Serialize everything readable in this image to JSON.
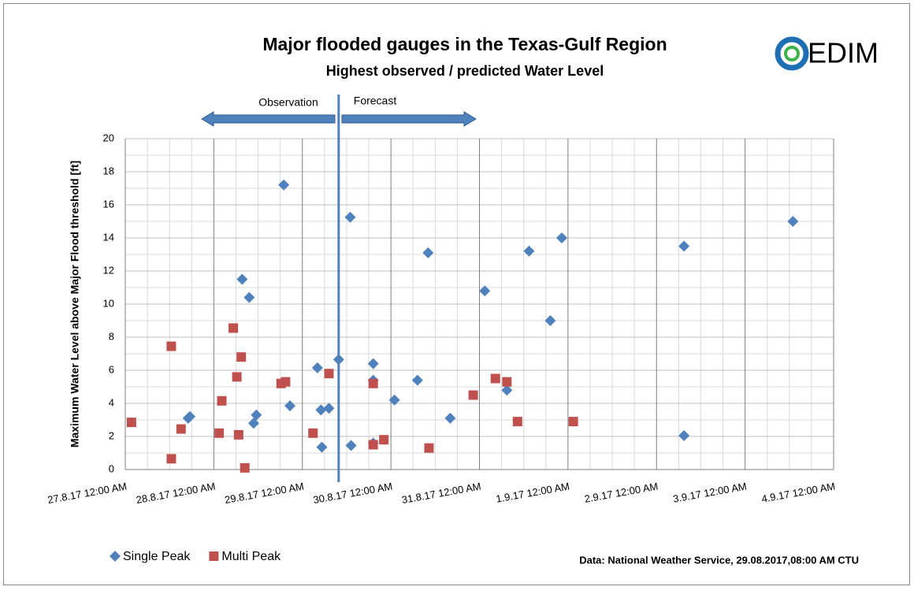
{
  "chart_data": {
    "type": "scatter",
    "title": "Major flooded gauges in the Texas-Gulf Region",
    "subtitle": "Highest observed / predicted Water Level",
    "logo": "EDIM",
    "y_label": "Maximum Water Level above Major Flood threshold [ft]",
    "annotations": {
      "observation": "Observation",
      "forecast": "Forecast"
    },
    "forecast_line_x": 42976.41,
    "source": "Data: National Weather Service, 29.08.2017,08:00 AM CTU",
    "xlim": [
      42974,
      42982
    ],
    "xticks": [
      {
        "value": 42974,
        "label": "27.8.17 12:00 AM"
      },
      {
        "value": 42975,
        "label": "28.8.17 12:00 AM"
      },
      {
        "value": 42976,
        "label": "29.8.17 12:00 AM"
      },
      {
        "value": 42977,
        "label": "30.8.17 12:00 AM"
      },
      {
        "value": 42978,
        "label": "31.8.17 12:00 AM"
      },
      {
        "value": 42979,
        "label": "1.9.17 12:00 AM"
      },
      {
        "value": 42980,
        "label": "2.9.17 12:00 AM"
      },
      {
        "value": 42981,
        "label": "3.9.17 12:00 AM"
      },
      {
        "value": 42982,
        "label": "4.9.17 12:00 AM"
      }
    ],
    "ylim": [
      0,
      20
    ],
    "yticks": [
      0,
      2,
      4,
      6,
      8,
      10,
      12,
      14,
      16,
      18,
      20
    ],
    "grid": true,
    "series": [
      {
        "name": "Single Peak",
        "color": "#4f81bd",
        "marker": "diamond",
        "x": [
          42974.73,
          42974.71,
          42975.32,
          42975.4,
          42975.45,
          42975.48,
          42975.79,
          42975.86,
          42976.17,
          42976.21,
          42976.22,
          42976.3,
          42976.41,
          42976.54,
          42976.55,
          42976.8,
          42976.8,
          42976.8,
          42977.04,
          42977.3,
          42977.42,
          42977.67,
          42978.06,
          42978.31,
          42978.56,
          42978.8,
          42978.93,
          42980.31,
          42980.31,
          42981.54
        ],
        "values": [
          3.2,
          3.1,
          11.5,
          10.4,
          2.8,
          3.3,
          17.2,
          3.85,
          6.15,
          3.6,
          1.35,
          3.7,
          6.65,
          15.25,
          1.45,
          6.4,
          5.4,
          1.6,
          4.2,
          5.4,
          13.1,
          3.1,
          10.8,
          4.8,
          13.2,
          9.0,
          14.0,
          13.5,
          2.05,
          15.0
        ]
      },
      {
        "name": "Multi Peak",
        "color": "#c0504d",
        "marker": "square",
        "x": [
          42974.07,
          42974.52,
          42974.52,
          42974.63,
          42975.06,
          42975.09,
          42975.22,
          42975.26,
          42975.28,
          42975.31,
          42975.35,
          42975.76,
          42975.81,
          42976.12,
          42976.3,
          42976.8,
          42976.8,
          42976.92,
          42977.43,
          42977.93,
          42978.18,
          42978.31,
          42978.43,
          42979.06
        ],
        "values": [
          2.85,
          7.45,
          0.65,
          2.45,
          2.2,
          4.15,
          8.55,
          5.6,
          2.1,
          6.8,
          0.1,
          5.2,
          5.3,
          2.2,
          5.8,
          5.2,
          1.5,
          1.8,
          1.3,
          4.5,
          5.5,
          5.3,
          2.9,
          2.9
        ]
      }
    ]
  }
}
